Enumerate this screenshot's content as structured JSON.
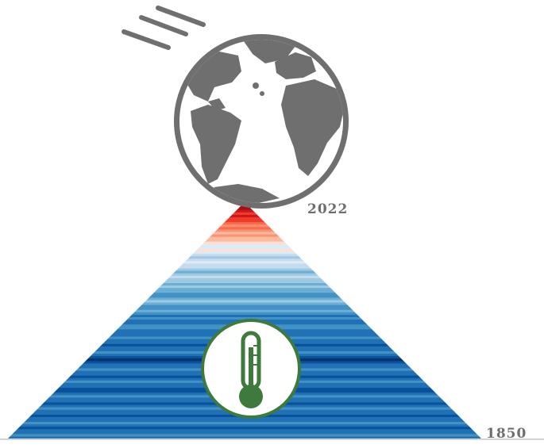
{
  "labels": {
    "end_year": "2022",
    "start_year": "1850"
  },
  "colors": {
    "globe": "#6f6f6f",
    "label_text": "#6e6e6e",
    "thermometer": "#3d7a3c",
    "thermometer_ring": "#3d7a3c",
    "baseline": "#d4d4d4"
  },
  "icons": {
    "globe": "globe-icon",
    "motion": "motion-lines-icon",
    "thermometer": "thermometer-icon"
  },
  "stripes": {
    "note_order": "bottom to top",
    "palette": [
      "#08306b",
      "#08519c",
      "#2171b5",
      "#4292c6",
      "#6baed6",
      "#9ecae1",
      "#c6dbef",
      "#deebf7",
      "#fee0d2",
      "#fcbba1",
      "#fc9272",
      "#fb6a4a",
      "#ef3b2c",
      "#cb181d",
      "#a50f15",
      "#67000d"
    ],
    "levels": [
      2,
      3,
      2,
      2,
      1,
      2,
      3,
      2,
      2,
      1,
      2,
      2,
      3,
      2,
      1,
      2,
      2,
      3,
      2,
      1,
      1,
      2,
      2,
      3,
      2,
      1,
      2,
      2,
      3,
      2,
      2,
      1,
      0,
      1,
      2,
      3,
      2,
      2,
      1,
      2,
      2,
      3,
      2,
      2,
      2,
      3,
      3,
      2,
      2,
      3,
      2,
      3,
      4,
      3,
      3,
      4,
      5,
      4,
      3,
      3,
      4,
      4,
      5,
      4,
      5,
      5,
      6,
      5,
      4,
      5,
      6,
      6,
      7,
      6,
      5,
      6,
      7,
      8,
      7,
      7,
      8,
      9,
      9,
      10,
      9,
      10,
      11,
      10,
      11,
      12,
      12,
      13,
      12,
      13,
      14,
      14,
      15
    ]
  }
}
